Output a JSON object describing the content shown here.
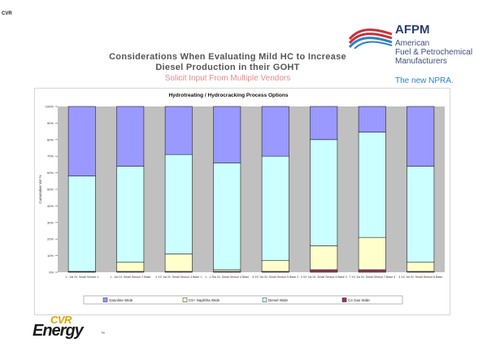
{
  "corner_text": "CVR",
  "slide": {
    "title_line1": "Considerations When Evaluating Mild HC to Increase",
    "title_line2": "Diesel Production in their GOHT",
    "subtitle": "Solicit Input From Multiple Vendors"
  },
  "afpm": {
    "name": "AFPM",
    "line1": "American",
    "line2": "Fuel & Petrochemical",
    "line3": "Manufacturers",
    "tagline": "The new NPRA."
  },
  "cvr": {
    "top": "CVR",
    "bottom": "Energy",
    "tm": "™"
  },
  "colors": {
    "gas": "#9999ff",
    "diesel": "#ccffff",
    "naphtha": "#ffffcc",
    "c4": "#993366",
    "plot_bg": "#c0c0c0",
    "afpm_navy": "#2a3f72",
    "afpm_red": "#c8323a",
    "afpm_blue": "#2b82c6",
    "cvr_gold": "#d8a400"
  },
  "chart_data": {
    "type": "bar",
    "stacked": true,
    "title": "Hydrotreating / Hydrocracking Process Options",
    "ylabel": "Cumulative Vol %",
    "ylim": [
      0,
      100
    ],
    "yticks": [
      "0%",
      "10%",
      "20%",
      "30%",
      "40%",
      "50%",
      "60%",
      "70%",
      "80%",
      "90%",
      "100%"
    ],
    "grid": false,
    "legend_position": "bottom",
    "categories": [
      "1 - 1st Gr. Small Sensor 1",
      "1 - 1st Gr. Small Sensor 2 Base",
      "4 XX 1st Gr. Small Sensor 3 Base 1",
      "1 - 1 Rst Gr. Small Sensor 4 Base",
      "4 XX 1st Gr. Small Sensor 5 Base 2",
      "4 XX 1st Gr. Small Sensor 6 Base 3",
      "7 XX 1st Gr. Small Sensor 7 Base 4",
      "3 XX 1st Gr. Small Sensor 8 Base"
    ],
    "series": [
      {
        "name": "C4 Gas/Wide",
        "values": [
          0.3,
          0.5,
          0.5,
          0.5,
          0.5,
          1.5,
          1.5,
          0.5
        ]
      },
      {
        "name": "Naphtha Wide",
        "values": [
          0.2,
          5.5,
          10.5,
          1.0,
          6.5,
          14.5,
          19.5,
          5.5
        ]
      },
      {
        "name": "Diesel Wide",
        "values": [
          57.5,
          58.0,
          60.0,
          64.5,
          63.0,
          64.0,
          63.5,
          58.0
        ]
      },
      {
        "name": "Gasoline Wide",
        "values": [
          42.0,
          36.0,
          29.0,
          34.0,
          30.0,
          20.0,
          15.5,
          36.0
        ]
      }
    ],
    "legend": [
      "Gasoline Wide",
      "C5+ Naphtha Wide",
      "Diesel Wide",
      "C4 Gas Wide"
    ]
  }
}
